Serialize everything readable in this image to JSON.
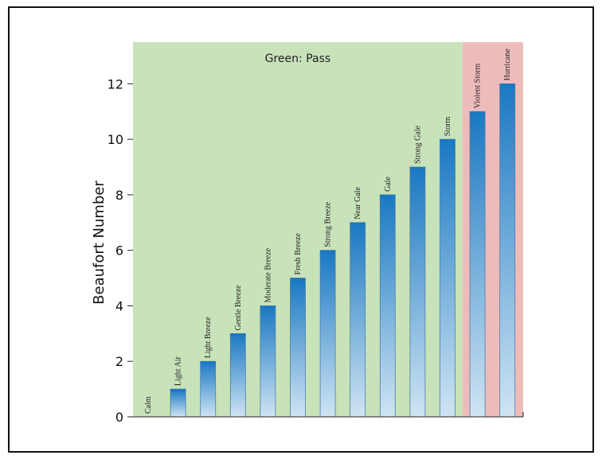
{
  "chart_data": {
    "type": "bar",
    "ylabel": "Beaufort Number",
    "yticks": [
      0,
      2,
      4,
      6,
      8,
      10,
      12
    ],
    "ylim": [
      0,
      13.5
    ],
    "categories": [
      "Calm",
      "Light Air",
      "Light Breeze",
      "Gentle Breeze",
      "Moderate Breeze",
      "Fresh Breeze",
      "Strong Breeze",
      "Near Gale",
      "Gale",
      "Strong Gale",
      "Storm",
      "Violent Storm",
      "Hurricane"
    ],
    "values": [
      0,
      1,
      2,
      3,
      4,
      5,
      6,
      7,
      8,
      9,
      10,
      11,
      12
    ],
    "zones": [
      {
        "label": "Green: Pass",
        "color": "#c8e2b9",
        "from_category": 0,
        "to_category": 10
      },
      {
        "label": "",
        "color": "#eebbbb",
        "from_category": 11,
        "to_category": 12
      }
    ],
    "highlight_label_category": "Gale",
    "highlight_label_color": "#3aa0d8",
    "bar_top_color": "#1a78c2",
    "bar_bottom_color": "#cfe4f3",
    "grid": false
  }
}
